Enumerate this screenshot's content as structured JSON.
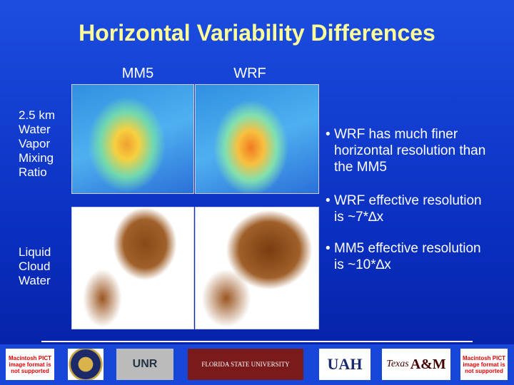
{
  "header": {
    "title": "Horizontal Variability Differences"
  },
  "columns": [
    "MM5",
    "WRF"
  ],
  "rows": [
    {
      "label_lines": [
        "2.5 km",
        "Water",
        "Vapor",
        "Mixing",
        "Ratio"
      ]
    },
    {
      "label_lines": [
        "Liquid",
        "Cloud",
        "Water"
      ]
    }
  ],
  "bullets": [
    "WRF has much finer horizontal resolution than the MM5",
    "WRF effective resolution is ~7*∆x",
    "MM5 effective resolution is ~10*∆x"
  ],
  "logos": {
    "pict_left": "Macintosh PICT image format is not supported",
    "unr": "UNR",
    "fsu": "FLORIDA STATE UNIVERSITY",
    "uah": "UAH",
    "tamu_texas": "Texas",
    "tamu_am": "A&M",
    "pict_right": "Macintosh PICT image format is not supported"
  }
}
